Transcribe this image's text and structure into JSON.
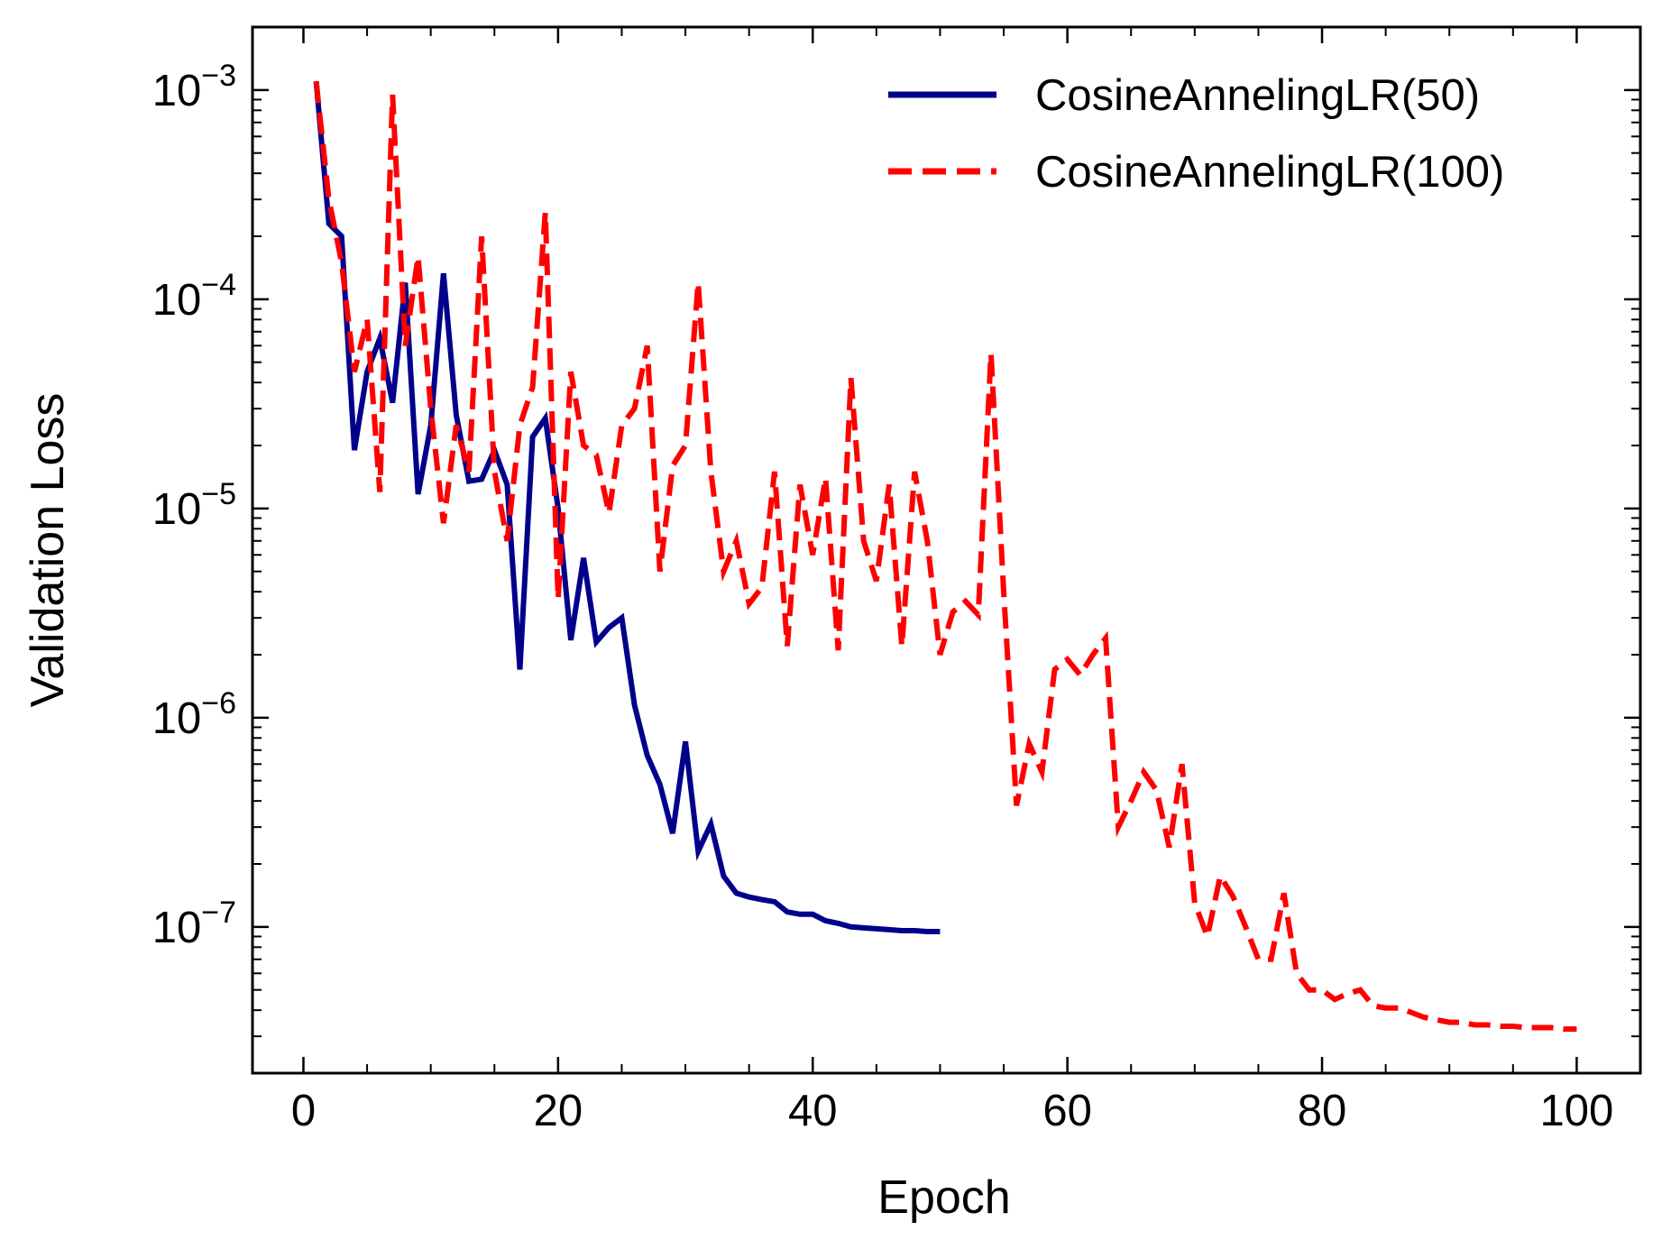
{
  "chart_data": {
    "type": "line",
    "title": "",
    "xlabel": "Epoch",
    "ylabel": "Validation Loss",
    "xlim": [
      -4,
      105
    ],
    "ylim": [
      2e-08,
      0.002
    ],
    "yscale": "log",
    "x_ticks": [
      0,
      20,
      40,
      60,
      80,
      100
    ],
    "x_tick_labels": [
      "0",
      "20",
      "40",
      "60",
      "80",
      "100"
    ],
    "y_ticks": [
      {
        "value": 0.001,
        "base": "10",
        "exp": "−3"
      },
      {
        "value": 0.0001,
        "base": "10",
        "exp": "−4"
      },
      {
        "value": 1e-05,
        "base": "10",
        "exp": "−5"
      },
      {
        "value": 1e-06,
        "base": "10",
        "exp": "−6"
      },
      {
        "value": 1e-07,
        "base": "10",
        "exp": "−7"
      }
    ],
    "grid": false,
    "legend_position": "top-right",
    "series": [
      {
        "name": "CosineAnnelingLR(50)",
        "color": "#00008b",
        "style": "solid",
        "x": [
          1,
          2,
          3,
          4,
          5,
          6,
          7,
          8,
          9,
          10,
          11,
          12,
          13,
          14,
          15,
          16,
          17,
          18,
          19,
          20,
          21,
          22,
          23,
          24,
          25,
          26,
          27,
          28,
          29,
          30,
          31,
          32,
          33,
          34,
          35,
          36,
          37,
          38,
          39,
          40,
          41,
          42,
          43,
          44,
          45,
          46,
          47,
          48,
          49,
          50
        ],
        "y": [
          0.0011,
          0.00023,
          0.0002,
          1.9e-05,
          4.5e-05,
          6.5e-05,
          3.2e-05,
          0.00012,
          1.17e-05,
          2.5e-05,
          0.000133,
          2.8e-05,
          1.35e-05,
          1.38e-05,
          1.9e-05,
          1.3e-05,
          1.7e-06,
          2.2e-05,
          2.7e-05,
          1e-05,
          2.35e-06,
          5.8e-06,
          2.3e-06,
          2.7e-06,
          3e-06,
          1.15e-06,
          6.6e-07,
          4.8e-07,
          2.8e-07,
          7.7e-07,
          2.3e-07,
          3.1e-07,
          1.75e-07,
          1.45e-07,
          1.39e-07,
          1.35e-07,
          1.32e-07,
          1.18e-07,
          1.15e-07,
          1.15e-07,
          1.07e-07,
          1.04e-07,
          1e-07,
          9.9e-08,
          9.8e-08,
          9.7e-08,
          9.6e-08,
          9.6e-08,
          9.5e-08,
          9.5e-08
        ]
      },
      {
        "name": "CosineAnnelingLR(100)",
        "color": "#ff0000",
        "style": "dashed",
        "x": [
          1,
          2,
          3,
          4,
          5,
          6,
          7,
          8,
          9,
          10,
          11,
          12,
          13,
          14,
          15,
          16,
          17,
          18,
          19,
          20,
          21,
          22,
          23,
          24,
          25,
          26,
          27,
          28,
          29,
          30,
          31,
          32,
          33,
          34,
          35,
          36,
          37,
          38,
          39,
          40,
          41,
          42,
          43,
          44,
          45,
          46,
          47,
          48,
          49,
          50,
          51,
          52,
          53,
          54,
          55,
          56,
          57,
          58,
          59,
          60,
          61,
          62,
          63,
          64,
          65,
          66,
          67,
          68,
          69,
          70,
          71,
          72,
          73,
          74,
          75,
          76,
          77,
          78,
          79,
          80,
          81,
          82,
          83,
          84,
          85,
          86,
          87,
          88,
          89,
          90,
          91,
          92,
          93,
          94,
          95,
          96,
          97,
          98,
          99,
          100
        ],
        "y": [
          0.0011,
          0.0003,
          0.00015,
          4.5e-05,
          8e-05,
          1.2e-05,
          0.00095,
          6e-05,
          0.00016,
          3e-05,
          8.5e-06,
          2.5e-05,
          1.5e-05,
          0.0002,
          1.5e-05,
          7e-06,
          2.5e-05,
          3.8e-05,
          0.00026,
          3.7e-06,
          4.5e-05,
          2e-05,
          1.8e-05,
          9.5e-06,
          2.5e-05,
          3e-05,
          6e-05,
          5e-06,
          1.6e-05,
          2e-05,
          0.00012,
          1.5e-05,
          5e-06,
          7e-06,
          3.5e-06,
          4.2e-06,
          1.5e-05,
          2.2e-06,
          1.3e-05,
          6e-06,
          1.4e-05,
          2.1e-06,
          4.2e-05,
          7e-06,
          4.5e-06,
          1.3e-05,
          2.2e-06,
          1.5e-05,
          7e-06,
          2e-06,
          3.2e-06,
          3.6e-06,
          3.1e-06,
          5.5e-05,
          4e-06,
          3.8e-07,
          7.5e-07,
          5.5e-07,
          1.7e-06,
          1.9e-06,
          1.6e-06,
          2e-06,
          2.4e-06,
          3e-07,
          4e-07,
          5.5e-07,
          4.5e-07,
          2.4e-07,
          6e-07,
          1.3e-07,
          9e-08,
          1.75e-07,
          1.4e-07,
          1e-07,
          7e-08,
          7e-08,
          1.45e-07,
          6e-08,
          5e-08,
          5e-08,
          4.5e-08,
          4.8e-08,
          5e-08,
          4.2e-08,
          4.1e-08,
          4.1e-08,
          3.9e-08,
          3.7e-08,
          3.6e-08,
          3.5e-08,
          3.5e-08,
          3.4e-08,
          3.4e-08,
          3.35e-08,
          3.35e-08,
          3.3e-08,
          3.3e-08,
          3.3e-08,
          3.25e-08,
          3.25e-08
        ]
      }
    ]
  }
}
